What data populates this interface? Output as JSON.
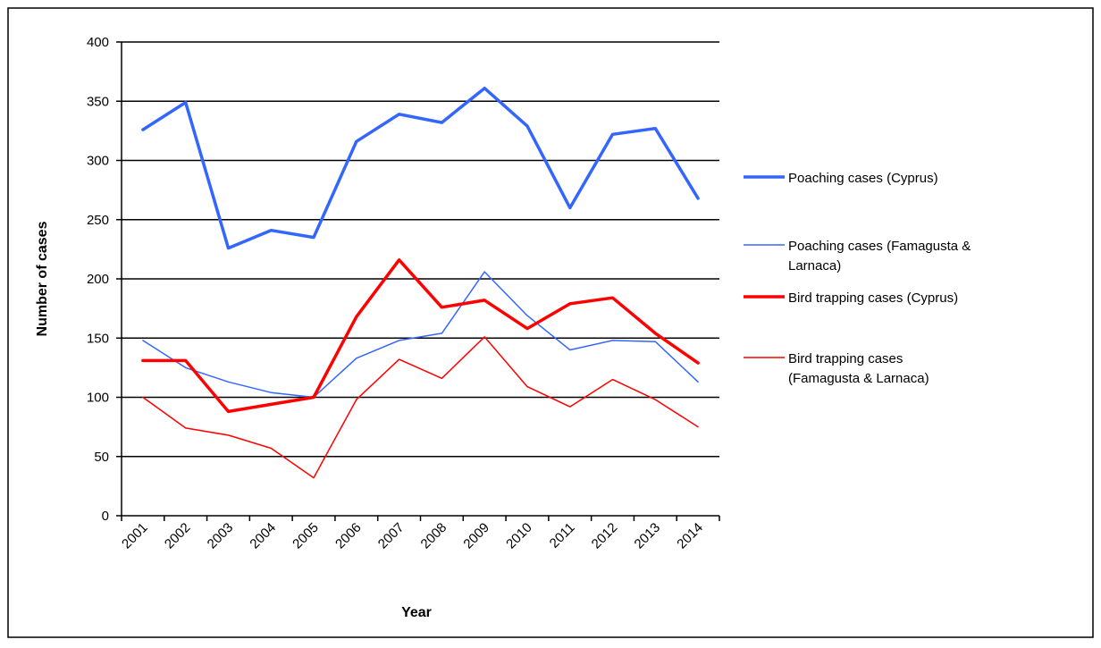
{
  "chart_data": {
    "type": "line",
    "title": "",
    "xlabel": "Year",
    "ylabel": "Number of cases",
    "categories": [
      "2001",
      "2002",
      "2003",
      "2004",
      "2005",
      "2006",
      "2007",
      "2008",
      "2009",
      "2010",
      "2011",
      "2012",
      "2013",
      "2014"
    ],
    "ylim": [
      0,
      400
    ],
    "yticks": [
      "0",
      "50",
      "100",
      "150",
      "200",
      "250",
      "300",
      "350",
      "400"
    ],
    "grid": "horizontal",
    "legend_position": "right",
    "series": [
      {
        "name": "Poaching cases (Cyprus)",
        "legend_lines": [
          "Poaching cases (Cyprus)"
        ],
        "color": "#3366FF",
        "weight": "thick",
        "values": [
          326,
          349,
          226,
          241,
          235,
          316,
          339,
          332,
          361,
          329,
          260,
          322,
          327,
          268
        ]
      },
      {
        "name": "Poaching cases (Famagusta & Larnaca)",
        "legend_lines": [
          "Poaching cases (Famagusta &",
          "Larnaca)"
        ],
        "color": "#3366FF",
        "weight": "thin",
        "values": [
          148,
          125,
          113,
          104,
          100,
          133,
          148,
          154,
          206,
          169,
          140,
          148,
          147,
          113
        ]
      },
      {
        "name": "Bird trapping cases (Cyprus)",
        "legend_lines": [
          "Bird trapping cases (Cyprus)"
        ],
        "color": "#FF0000",
        "weight": "thick",
        "values": [
          131,
          131,
          88,
          94,
          100,
          168,
          216,
          176,
          182,
          158,
          179,
          184,
          154,
          129
        ]
      },
      {
        "name": "Bird trapping cases (Famagusta & Larnaca)",
        "legend_lines": [
          "Bird trapping cases",
          "(Famagusta & Larnaca)"
        ],
        "color": "#FF0000",
        "weight": "thin",
        "values": [
          100,
          74,
          68,
          57,
          32,
          98,
          132,
          116,
          151,
          109,
          92,
          115,
          98,
          75
        ]
      }
    ]
  }
}
